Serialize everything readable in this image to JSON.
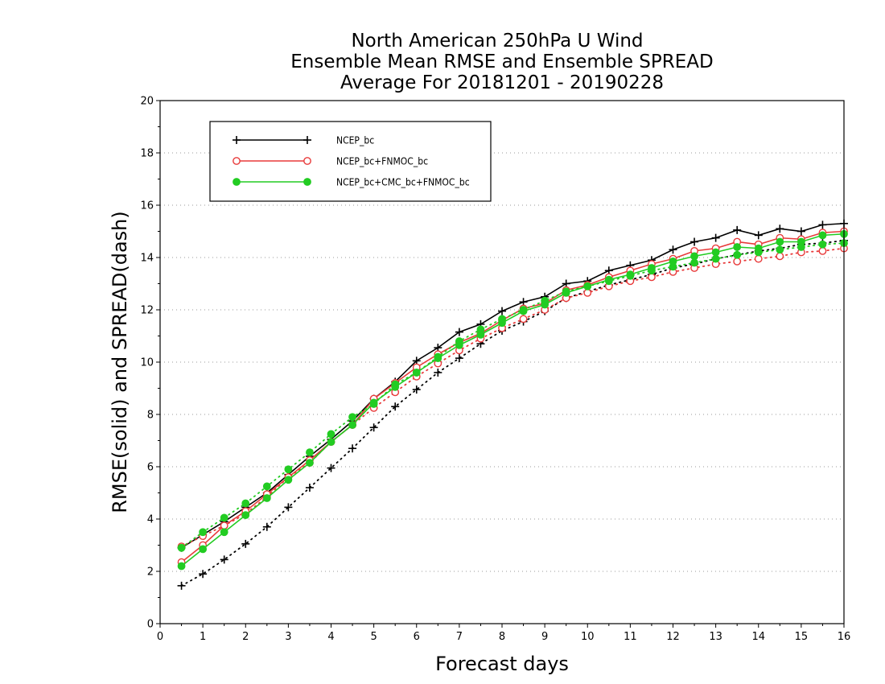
{
  "chart_data": {
    "type": "line",
    "title_lines": [
      "North American 250hPa U Wind",
      "Ensemble Mean RMSE and Ensemble SPREAD",
      "Average For 20181201 - 20190228"
    ],
    "xlabel": "Forecast days",
    "ylabel": "RMSE(solid) and SPREAD(dash)",
    "xlim": [
      0,
      16
    ],
    "ylim": [
      0,
      20
    ],
    "xticks": [
      "0",
      "1",
      "2",
      "3",
      "4",
      "5",
      "6",
      "7",
      "8",
      "9",
      "10",
      "11",
      "12",
      "13",
      "14",
      "15",
      "16"
    ],
    "yticks": [
      "0",
      "2",
      "4",
      "6",
      "8",
      "10",
      "12",
      "14",
      "16",
      "18",
      "20"
    ],
    "grid": "horizontal dotted",
    "legend_position": "top-left",
    "x": [
      0.5,
      1,
      1.5,
      2,
      2.5,
      3,
      3.5,
      4,
      4.5,
      5,
      5.5,
      6,
      6.5,
      7,
      7.5,
      8,
      8.5,
      9,
      9.5,
      10,
      10.5,
      11,
      11.5,
      12,
      12.5,
      13,
      13.5,
      14,
      14.5,
      15,
      15.5,
      16
    ],
    "series": [
      {
        "name": "NCEP_bc",
        "color": "#000000",
        "marker": "plus",
        "rmse": [
          2.9,
          3.4,
          3.9,
          4.45,
          5.0,
          5.7,
          6.4,
          7.05,
          7.75,
          8.6,
          9.25,
          10.05,
          10.55,
          11.15,
          11.45,
          11.95,
          12.3,
          12.5,
          13.0,
          13.1,
          13.5,
          13.7,
          13.9,
          14.3,
          14.6,
          14.75,
          15.05,
          14.85,
          15.1,
          15.0,
          15.25,
          15.3
        ],
        "spread": [
          1.45,
          1.9,
          2.45,
          3.05,
          3.7,
          4.45,
          5.2,
          5.95,
          6.7,
          7.5,
          8.3,
          8.95,
          9.6,
          10.15,
          10.7,
          11.2,
          11.55,
          11.95,
          12.45,
          12.7,
          12.95,
          13.15,
          13.35,
          13.6,
          13.75,
          13.95,
          14.1,
          14.25,
          14.35,
          14.5,
          14.55,
          14.65
        ]
      },
      {
        "name": "NCEP_bc+FNMOC_bc",
        "color": "#e83a3a",
        "marker": "open-circle",
        "rmse": [
          2.35,
          3.0,
          3.75,
          4.3,
          4.95,
          5.6,
          6.25,
          6.95,
          7.6,
          8.6,
          9.2,
          9.8,
          10.3,
          10.75,
          11.1,
          11.6,
          12.05,
          12.25,
          12.75,
          12.95,
          13.25,
          13.5,
          13.75,
          13.95,
          14.25,
          14.35,
          14.6,
          14.5,
          14.75,
          14.7,
          14.95,
          15.0
        ],
        "spread": [
          2.95,
          3.35,
          3.75,
          4.2,
          4.85,
          5.6,
          6.15,
          6.95,
          7.6,
          8.25,
          8.85,
          9.45,
          9.95,
          10.45,
          10.9,
          11.3,
          11.65,
          12.0,
          12.45,
          12.65,
          12.9,
          13.1,
          13.25,
          13.45,
          13.6,
          13.75,
          13.85,
          13.95,
          14.05,
          14.2,
          14.25,
          14.35
        ]
      },
      {
        "name": "NCEP_bc+CMC_bc+FNMOC_bc",
        "color": "#22cc22",
        "marker": "filled-circle",
        "rmse": [
          2.2,
          2.85,
          3.5,
          4.15,
          4.8,
          5.5,
          6.15,
          6.95,
          7.6,
          8.45,
          9.05,
          9.6,
          10.15,
          10.65,
          11.05,
          11.5,
          11.95,
          12.2,
          12.65,
          12.9,
          13.15,
          13.35,
          13.6,
          13.85,
          14.05,
          14.2,
          14.4,
          14.35,
          14.6,
          14.6,
          14.85,
          14.9
        ],
        "spread": [
          2.9,
          3.5,
          4.05,
          4.6,
          5.25,
          5.9,
          6.55,
          7.25,
          7.9,
          8.4,
          9.15,
          9.6,
          10.2,
          10.8,
          11.25,
          11.65,
          12.0,
          12.35,
          12.7,
          12.9,
          13.1,
          13.3,
          13.5,
          13.65,
          13.8,
          13.95,
          14.1,
          14.2,
          14.3,
          14.4,
          14.5,
          14.55
        ]
      }
    ]
  }
}
